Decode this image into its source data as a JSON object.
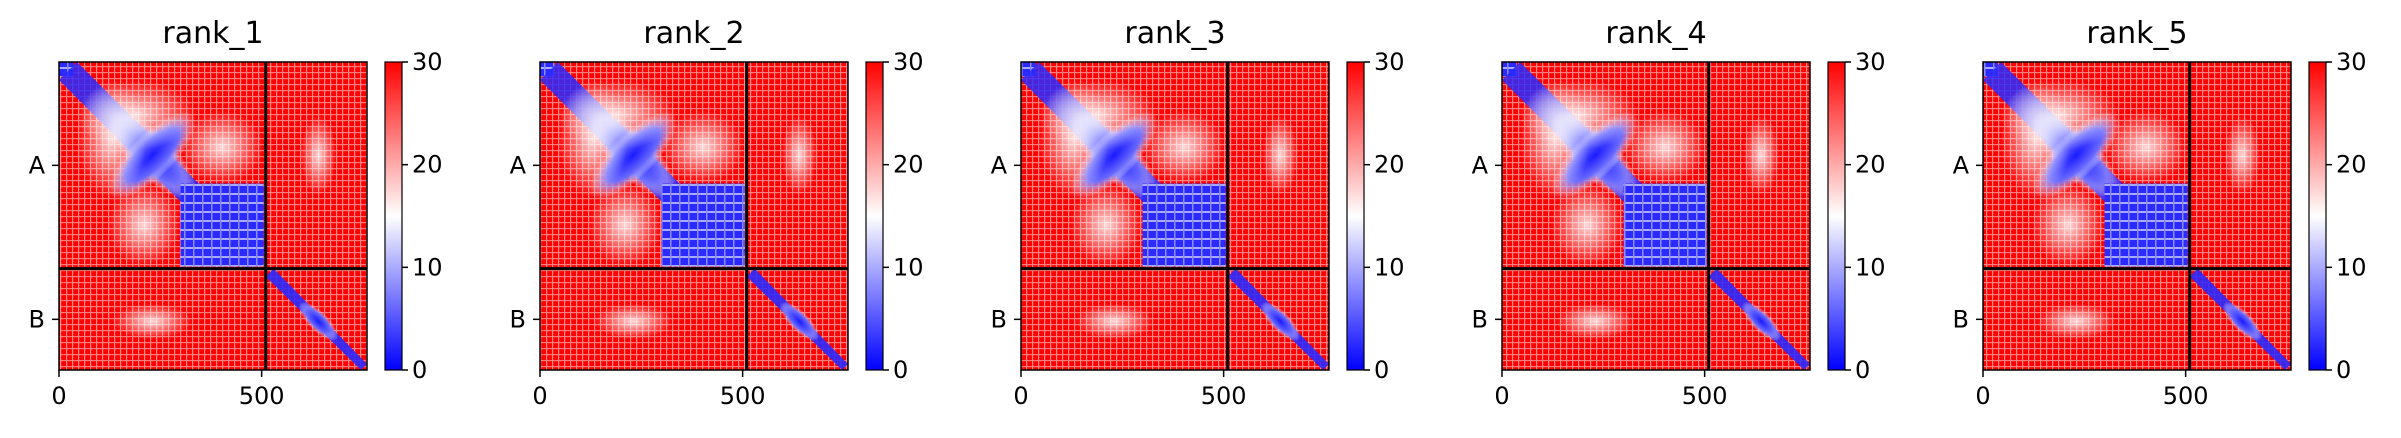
{
  "chart_data": {
    "type": "heatmap",
    "description_of_values": "Predicted aligned error matrix (chains A and B)",
    "x_ticks": [
      0,
      500
    ],
    "y_ticks": [
      "A",
      "B"
    ],
    "total_residues": 760,
    "chain_A_length": 510,
    "colorbar": {
      "min": 0,
      "max": 30,
      "ticks": [
        0,
        10,
        20,
        30
      ],
      "colormap": [
        "#0000ff",
        "#ffffff",
        "#ff0000"
      ]
    },
    "panels": [
      {
        "title": "rank_1"
      },
      {
        "title": "rank_2"
      },
      {
        "title": "rank_3"
      },
      {
        "title": "rank_4"
      },
      {
        "title": "rank_5"
      }
    ]
  }
}
